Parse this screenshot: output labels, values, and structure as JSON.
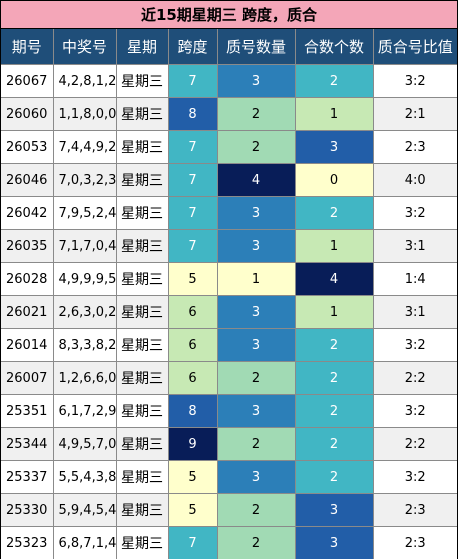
{
  "title": "近15期星期三 跨度，质合",
  "colors": {
    "title_bg": "#f4a6b8",
    "header_bg": "#1f4e79",
    "header_text": "#ffffff",
    "row_bg_odd": "#ffffff",
    "row_bg_even": "#f0f0f0"
  },
  "headers": [
    "期号",
    "中奖号",
    "星期",
    "跨度",
    "质号数量",
    "合数个数",
    "质合号比值"
  ],
  "rows": [
    {
      "issue": "26067",
      "digits": "4,2,8,1,2",
      "weekday": "星期三",
      "span": "7",
      "primes": "3",
      "composites": "2",
      "ratio": "3:2",
      "span_color": "#41b6c4",
      "primes_color": "#2c7fb8",
      "composites_color": "#41b6c4"
    },
    {
      "issue": "26060",
      "digits": "1,1,8,0,0",
      "weekday": "星期三",
      "span": "8",
      "primes": "2",
      "composites": "1",
      "ratio": "2:1",
      "span_color": "#225ea8",
      "primes_color": "#a1dab4",
      "composites_color": "#c7e9b4"
    },
    {
      "issue": "26053",
      "digits": "7,4,4,9,2",
      "weekday": "星期三",
      "span": "7",
      "primes": "2",
      "composites": "3",
      "ratio": "2:3",
      "span_color": "#41b6c4",
      "primes_color": "#a1dab4",
      "composites_color": "#225ea8"
    },
    {
      "issue": "26046",
      "digits": "7,0,3,2,3",
      "weekday": "星期三",
      "span": "7",
      "primes": "4",
      "composites": "0",
      "ratio": "4:0",
      "span_color": "#41b6c4",
      "primes_color": "#081d58",
      "composites_color": "#ffffcc"
    },
    {
      "issue": "26042",
      "digits": "7,9,5,2,4",
      "weekday": "星期三",
      "span": "7",
      "primes": "3",
      "composites": "2",
      "ratio": "3:2",
      "span_color": "#41b6c4",
      "primes_color": "#2c7fb8",
      "composites_color": "#41b6c4"
    },
    {
      "issue": "26035",
      "digits": "7,1,7,0,4",
      "weekday": "星期三",
      "span": "7",
      "primes": "3",
      "composites": "1",
      "ratio": "3:1",
      "span_color": "#41b6c4",
      "primes_color": "#2c7fb8",
      "composites_color": "#c7e9b4"
    },
    {
      "issue": "26028",
      "digits": "4,9,9,9,5",
      "weekday": "星期三",
      "span": "5",
      "primes": "1",
      "composites": "4",
      "ratio": "1:4",
      "span_color": "#ffffcc",
      "primes_color": "#ffffcc",
      "composites_color": "#081d58"
    },
    {
      "issue": "26021",
      "digits": "2,6,3,0,2",
      "weekday": "星期三",
      "span": "6",
      "primes": "3",
      "composites": "1",
      "ratio": "3:1",
      "span_color": "#c7e9b4",
      "primes_color": "#2c7fb8",
      "composites_color": "#c7e9b4"
    },
    {
      "issue": "26014",
      "digits": "8,3,3,8,2",
      "weekday": "星期三",
      "span": "6",
      "primes": "3",
      "composites": "2",
      "ratio": "3:2",
      "span_color": "#c7e9b4",
      "primes_color": "#2c7fb8",
      "composites_color": "#41b6c4"
    },
    {
      "issue": "26007",
      "digits": "1,2,6,6,0",
      "weekday": "星期三",
      "span": "6",
      "primes": "2",
      "composites": "2",
      "ratio": "2:2",
      "span_color": "#c7e9b4",
      "primes_color": "#a1dab4",
      "composites_color": "#41b6c4"
    },
    {
      "issue": "25351",
      "digits": "6,1,7,2,9",
      "weekday": "星期三",
      "span": "8",
      "primes": "3",
      "composites": "2",
      "ratio": "3:2",
      "span_color": "#225ea8",
      "primes_color": "#2c7fb8",
      "composites_color": "#41b6c4"
    },
    {
      "issue": "25344",
      "digits": "4,9,5,7,0",
      "weekday": "星期三",
      "span": "9",
      "primes": "2",
      "composites": "2",
      "ratio": "2:2",
      "span_color": "#081d58",
      "primes_color": "#a1dab4",
      "composites_color": "#41b6c4"
    },
    {
      "issue": "25337",
      "digits": "5,5,4,3,8",
      "weekday": "星期三",
      "span": "5",
      "primes": "3",
      "composites": "2",
      "ratio": "3:2",
      "span_color": "#ffffcc",
      "primes_color": "#2c7fb8",
      "composites_color": "#41b6c4"
    },
    {
      "issue": "25330",
      "digits": "5,9,4,5,4",
      "weekday": "星期三",
      "span": "5",
      "primes": "2",
      "composites": "3",
      "ratio": "2:3",
      "span_color": "#ffffcc",
      "primes_color": "#a1dab4",
      "composites_color": "#225ea8"
    },
    {
      "issue": "25323",
      "digits": "6,8,7,1,4",
      "weekday": "星期三",
      "span": "7",
      "primes": "2",
      "composites": "3",
      "ratio": "2:3",
      "span_color": "#41b6c4",
      "primes_color": "#a1dab4",
      "composites_color": "#225ea8"
    }
  ]
}
